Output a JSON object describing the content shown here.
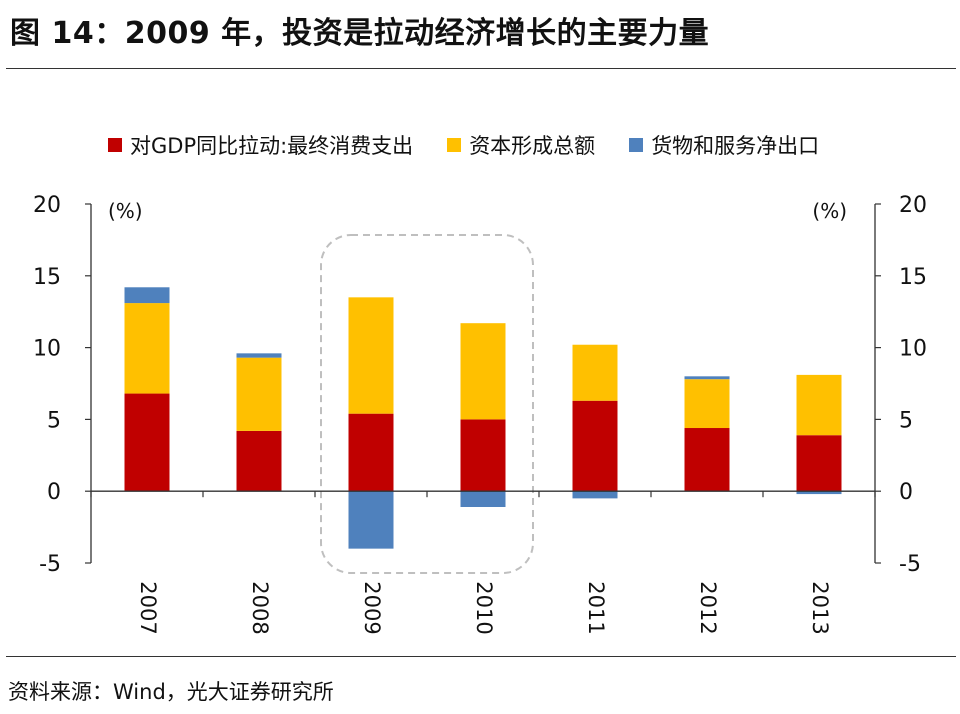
{
  "figure": {
    "title": "图 14：2009 年，投资是拉动经济增长的主要力量",
    "source": "资料来源：Wind，光大证券研究所"
  },
  "colors": {
    "consumption": "#C00000",
    "capital": "#FFC000",
    "net_exports": "#4F81BD",
    "axis": "#333333",
    "highlight_box": "#BFBFBF"
  },
  "chart_data": {
    "type": "bar",
    "stacked": true,
    "categories": [
      "2007",
      "2008",
      "2009",
      "2010",
      "2011",
      "2012",
      "2013"
    ],
    "series": [
      {
        "name": "对GDP同比拉动:最终消费支出",
        "color_key": "consumption",
        "values": [
          6.8,
          4.2,
          5.4,
          5.0,
          6.3,
          4.4,
          3.9
        ]
      },
      {
        "name": "资本形成总额",
        "color_key": "capital",
        "values": [
          6.3,
          5.1,
          8.1,
          6.7,
          3.9,
          3.4,
          4.2
        ]
      },
      {
        "name": "货物和服务净出口",
        "color_key": "net_exports",
        "values": [
          1.1,
          0.3,
          -4.0,
          -1.1,
          -0.5,
          0.2,
          -0.2
        ]
      }
    ],
    "y_axis": {
      "min": -5,
      "max": 20,
      "ticks": [
        "20",
        "15",
        "10",
        "5",
        "0",
        "-5"
      ],
      "tick_values": [
        20,
        15,
        10,
        5,
        0,
        -5
      ],
      "unit_left": "(%)",
      "unit_right": "(%)"
    },
    "highlight": {
      "from": "2009",
      "to": "2010"
    },
    "grid": false,
    "legend_position": "top"
  }
}
